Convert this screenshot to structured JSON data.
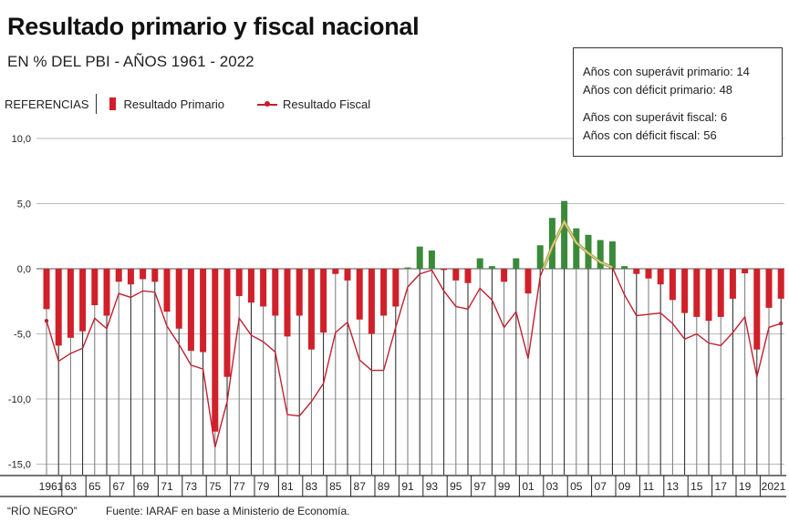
{
  "title": "Resultado primario y fiscal nacional",
  "subtitle": "EN % DEL PBI - AÑOS 1961 - 2022",
  "legend": {
    "label": "REFERENCIAS",
    "primary": "Resultado Primario",
    "fiscal": "Resultado Fiscal",
    "placement": "top-left"
  },
  "info": {
    "line1": "Años con superávit primario: 14",
    "line2": "Años con déficit primario: 48",
    "line3": "Años con superávit fiscal: 6",
    "line4": "Años con déficit fiscal: 56"
  },
  "footer": {
    "credit": "“RÍO NEGRO”",
    "source": "Fuente: IARAF en base a Ministerio de Economía."
  },
  "colors": {
    "deficit": "#d0202a",
    "surplus": "#3a8a3a",
    "fiscal_line": "#c02030",
    "fiscal_highlight": "#d8d27a"
  },
  "chart_data": {
    "type": "bar+line",
    "ylim": [
      -15,
      10
    ],
    "yticks": [
      "10,0",
      "5,0",
      "0,0",
      "-5,0",
      "-10,0",
      "-15,0"
    ],
    "ytick_values": [
      10,
      5,
      0,
      -5,
      -10,
      -15
    ],
    "xtick_labels": [
      "1961",
      "63",
      "65",
      "67",
      "69",
      "71",
      "73",
      "75",
      "77",
      "79",
      "81",
      "83",
      "85",
      "87",
      "89",
      "91",
      "93",
      "95",
      "97",
      "99",
      "01",
      "03",
      "05",
      "07",
      "09",
      "11",
      "13",
      "15",
      "17",
      "19",
      "2021"
    ],
    "grid": true,
    "x": [
      1961,
      1962,
      1963,
      1964,
      1965,
      1966,
      1967,
      1968,
      1969,
      1970,
      1971,
      1972,
      1973,
      1974,
      1975,
      1976,
      1977,
      1978,
      1979,
      1980,
      1981,
      1982,
      1983,
      1984,
      1985,
      1986,
      1987,
      1988,
      1989,
      1990,
      1991,
      1992,
      1993,
      1994,
      1995,
      1996,
      1997,
      1998,
      1999,
      2000,
      2001,
      2002,
      2003,
      2004,
      2005,
      2006,
      2007,
      2008,
      2009,
      2010,
      2011,
      2012,
      2013,
      2014,
      2015,
      2016,
      2017,
      2018,
      2019,
      2020,
      2021,
      2022
    ],
    "series": [
      {
        "name": "Resultado Primario",
        "type": "bar",
        "values": [
          -3.1,
          -5.9,
          -5.3,
          -4.8,
          -2.8,
          -3.6,
          -1.0,
          -1.2,
          -0.8,
          -1.0,
          -3.3,
          -4.6,
          -6.3,
          -6.4,
          -12.5,
          -8.3,
          -2.1,
          -2.6,
          -2.9,
          -3.6,
          -5.2,
          -3.6,
          -6.2,
          -4.9,
          -0.4,
          -0.9,
          -3.9,
          -5.0,
          -3.6,
          -2.9,
          0.1,
          1.7,
          1.4,
          -0.1,
          -0.9,
          -1.1,
          0.8,
          0.2,
          -1.0,
          0.8,
          -1.9,
          1.8,
          3.9,
          5.2,
          3.1,
          2.6,
          2.2,
          2.1,
          0.2,
          -0.4,
          -0.75,
          -1.2,
          -2.4,
          -3.4,
          -3.7,
          -4.0,
          -3.7,
          -2.3,
          -0.35,
          -6.2,
          -3.0,
          -2.3
        ]
      },
      {
        "name": "Resultado Fiscal",
        "type": "line",
        "values": [
          -4.0,
          -7.1,
          -6.5,
          -6.1,
          -3.8,
          -4.6,
          -1.9,
          -2.2,
          -1.7,
          -1.8,
          -4.4,
          -5.8,
          -7.4,
          -7.7,
          -13.7,
          -10.2,
          -3.8,
          -5.1,
          -5.6,
          -6.4,
          -11.2,
          -11.3,
          -10.2,
          -8.8,
          -4.9,
          -4.1,
          -7.0,
          -7.8,
          -7.8,
          -4.5,
          -1.4,
          -0.4,
          -0.1,
          -1.7,
          -2.9,
          -3.1,
          -1.5,
          -2.4,
          -4.5,
          -3.3,
          -6.9,
          -0.6,
          1.7,
          3.6,
          2.0,
          1.2,
          0.5,
          0.1,
          -2.0,
          -3.6,
          -3.5,
          -3.4,
          -4.2,
          -5.4,
          -5.0,
          -5.7,
          -5.9,
          -4.9,
          -3.7,
          -8.3,
          -4.5,
          -4.2
        ]
      }
    ]
  }
}
